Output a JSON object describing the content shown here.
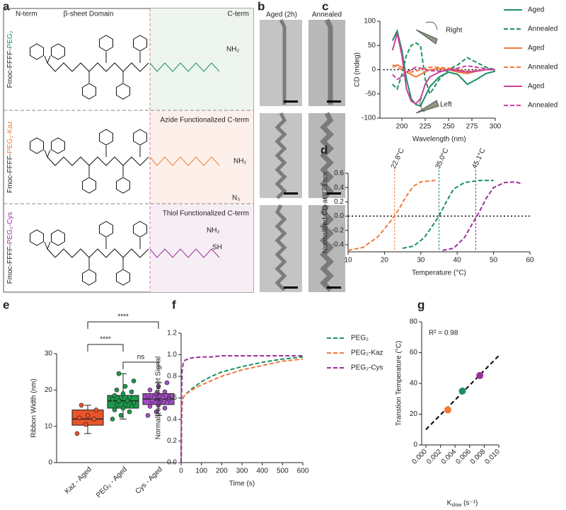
{
  "structures": {
    "panel": "a",
    "header": [
      "N-term",
      "β-sheet Domain",
      "C-term"
    ],
    "rows": [
      {
        "prefix": "Fmoc-FFFF-",
        "suffix": "PEG₂",
        "color": "#1a9060",
        "atoms": [
          "NH₂"
        ]
      },
      {
        "prefix": "Fmoc-FFFF-",
        "suffix": "PEG₂-Kaz",
        "color": "#f07a3a",
        "note": "Azide Functionalized C-term",
        "atoms": [
          "NH₂",
          "N₃"
        ]
      },
      {
        "prefix": "Fmoc-FFFF-",
        "suffix": "PEG₂-Cys",
        "color": "#9b2f9b",
        "note": "Thiol Functionalized C-term",
        "atoms": [
          "NH₂",
          "SH"
        ]
      }
    ]
  },
  "micrographs": {
    "panel": "b",
    "columns": [
      "Aged (2h)",
      "Annealed"
    ]
  },
  "chart_data": [
    {
      "panel": "c",
      "type": "line",
      "xlabel": "Wavelength (nm)",
      "ylabel": "CD (mdeg)",
      "x": [
        190,
        195,
        200,
        205,
        210,
        215,
        220,
        225,
        230,
        240,
        250,
        260,
        270,
        280,
        290,
        300
      ],
      "xlim": [
        180,
        300
      ],
      "xticks": [
        200,
        225,
        250,
        275,
        300
      ],
      "ylim": [
        -100,
        100
      ],
      "yticks": [
        -100,
        -50,
        0,
        50,
        100
      ],
      "zero_line": true,
      "annotations": [
        "Right",
        "Left"
      ],
      "legend": true,
      "series": [
        {
          "name": "Aged",
          "color": "#1a9060",
          "dash": false,
          "values": [
            60,
            80,
            40,
            -20,
            -60,
            -72,
            -75,
            -55,
            -35,
            -15,
            -5,
            -10,
            -30,
            -20,
            -8,
            -3
          ]
        },
        {
          "name": "Annealed",
          "color": "#1a9060",
          "dash": true,
          "values": [
            -30,
            -40,
            -10,
            30,
            50,
            55,
            50,
            -20,
            -50,
            -20,
            0,
            10,
            25,
            15,
            5,
            0
          ]
        },
        {
          "name": "Aged",
          "color": "#f07a3a",
          "dash": false,
          "values": [
            5,
            10,
            5,
            -5,
            -10,
            -15,
            -10,
            -5,
            0,
            2,
            0,
            -5,
            -8,
            -3,
            0,
            0
          ]
        },
        {
          "name": "Annealed",
          "color": "#f07a3a",
          "dash": true,
          "values": [
            10,
            5,
            0,
            -5,
            -5,
            -3,
            0,
            3,
            5,
            5,
            3,
            0,
            -3,
            -2,
            0,
            0
          ]
        },
        {
          "name": "Aged",
          "color": "#c8409a",
          "dash": false,
          "values": [
            40,
            75,
            30,
            -40,
            -65,
            -70,
            -60,
            -30,
            -15,
            -5,
            0,
            -2,
            -5,
            -3,
            0,
            0
          ]
        },
        {
          "name": "Annealed",
          "color": "#c8409a",
          "dash": true,
          "values": [
            -10,
            -20,
            -15,
            -5,
            0,
            5,
            3,
            0,
            -2,
            -3,
            0,
            3,
            8,
            5,
            2,
            0
          ]
        }
      ]
    },
    {
      "panel": "d",
      "type": "line",
      "xlabel": "Temperature (°C)",
      "ylabel": "Normalized CD at 273 nm",
      "xlim": [
        10,
        60
      ],
      "xticks": [
        10,
        20,
        30,
        40,
        50,
        60
      ],
      "ylim": [
        -0.5,
        0.6
      ],
      "yticks": [
        -0.4,
        -0.2,
        {
          "value": 0,
          "label": "0.0"
        },
        0.2,
        0.4,
        0.6
      ],
      "zero_line": true,
      "series": [
        {
          "color": "#f07a3a",
          "dash": true,
          "x": [
            10,
            14,
            18,
            20,
            22,
            24,
            26,
            28,
            30,
            34
          ],
          "values": [
            -0.48,
            -0.44,
            -0.3,
            -0.18,
            -0.05,
            0.1,
            0.28,
            0.42,
            0.48,
            0.5
          ],
          "transition": 22.8,
          "transition_label": "22.8°C"
        },
        {
          "color": "#1a9060",
          "dash": true,
          "x": [
            25,
            28,
            31,
            33,
            35,
            37,
            39,
            42,
            46,
            50
          ],
          "values": [
            -0.45,
            -0.42,
            -0.3,
            -0.15,
            0,
            0.2,
            0.38,
            0.47,
            0.5,
            0.5
          ],
          "transition": 35.0,
          "transition_label": "35.0°C"
        },
        {
          "color": "#9b2f9b",
          "dash": true,
          "x": [
            36,
            39,
            42,
            44,
            46,
            48,
            50,
            53,
            56,
            58
          ],
          "values": [
            -0.48,
            -0.45,
            -0.3,
            -0.12,
            0.05,
            0.25,
            0.4,
            0.47,
            0.48,
            0.45
          ],
          "transition": 45.1,
          "transition_label": "45.1°C"
        }
      ]
    },
    {
      "panel": "e",
      "type": "box",
      "ylabel": "Ribbon Width (nm)",
      "ylim": [
        0,
        30
      ],
      "yticks": [
        0,
        10,
        20,
        30
      ],
      "categories": [
        "Kaz - Aged",
        "PEG₂ - Aged",
        "Cys - Aged"
      ],
      "boxes": [
        {
          "color": "#e8542a",
          "min": 8,
          "q1": 10.3,
          "median": 12,
          "q3": 14.5,
          "max": 15.8,
          "points": [
            8,
            10.5,
            12,
            12.3,
            13,
            14.5,
            15.8
          ]
        },
        {
          "color": "#1a9a4a",
          "min": 12,
          "q1": 15,
          "median": 17,
          "q3": 18.5,
          "max": 24.5,
          "points": [
            12,
            13,
            14,
            14.5,
            15,
            15.5,
            16,
            16,
            16.5,
            17,
            17,
            17.5,
            18,
            18,
            18.5,
            19,
            19.5,
            20,
            21,
            22.5,
            24.5
          ]
        },
        {
          "color": "#a54bc4",
          "min": 13,
          "q1": 16,
          "median": 17.5,
          "q3": 19,
          "max": 22,
          "points": [
            13,
            14,
            15,
            15.5,
            16,
            16.5,
            17,
            17,
            17.5,
            18,
            18,
            18.5,
            19,
            19.5,
            20,
            21,
            22
          ]
        }
      ],
      "significance": [
        {
          "label": "****",
          "groups": [
            "Kaz - Aged",
            "Cys - Aged"
          ]
        },
        {
          "label": "****",
          "groups": [
            "Kaz - Aged",
            "PEG₂ - Aged"
          ]
        },
        {
          "label": "ns",
          "groups": [
            "PEG₂ - Aged",
            "Cys - Aged"
          ]
        }
      ]
    },
    {
      "panel": "f",
      "type": "line",
      "xlabel": "Time (s)",
      "ylabel": "Normalized β-sheet Signal",
      "x": [
        0,
        2,
        5,
        10,
        20,
        50,
        100,
        150,
        200,
        300,
        400,
        500,
        600
      ],
      "xlim": [
        0,
        600
      ],
      "xticks": [
        0,
        100,
        200,
        300,
        400,
        500,
        600
      ],
      "ylim": [
        0,
        1.2
      ],
      "yticks": [
        {
          "value": 0,
          "label": "0.0"
        },
        0.2,
        0.4,
        0.6,
        0.8,
        {
          "value": 1,
          "label": "1.0"
        },
        1.2
      ],
      "legend": true,
      "series": [
        {
          "name": "PEG₂",
          "color": "#1a9060",
          "dash": true,
          "values": [
            0,
            0.4,
            0.55,
            0.6,
            0.63,
            0.68,
            0.75,
            0.8,
            0.84,
            0.89,
            0.93,
            0.96,
            0.98
          ]
        },
        {
          "name": "PEG₂-Kaz",
          "color": "#f07a3a",
          "dash": true,
          "values": [
            0,
            0.4,
            0.55,
            0.6,
            0.63,
            0.67,
            0.72,
            0.76,
            0.8,
            0.86,
            0.9,
            0.94,
            0.96
          ]
        },
        {
          "name": "PEG₂-Cys",
          "color": "#9b2f9b",
          "dash": true,
          "values": [
            0,
            0.6,
            0.85,
            0.92,
            0.95,
            0.97,
            0.98,
            0.98,
            0.99,
            0.99,
            0.99,
            0.99,
            0.99
          ]
        }
      ]
    },
    {
      "panel": "g",
      "type": "scatter",
      "xlabel": {
        "main": "K",
        "sub": "slow",
        "unit": " (s⁻¹)"
      },
      "ylabel": "Transtion Temperature (°C)",
      "xlim": [
        0,
        0.01
      ],
      "xticks": [
        {
          "value": 0,
          "label": "0.000"
        },
        0.002,
        0.004,
        0.006,
        0.008,
        {
          "value": 0.01,
          "label": "0.010"
        }
      ],
      "ylim": [
        0,
        80
      ],
      "yticks": [
        0,
        20,
        40,
        60,
        80
      ],
      "x": [
        0.003,
        0.005,
        0.0074
      ],
      "values": [
        22.8,
        35,
        45.1
      ],
      "colors": [
        "#f07a3a",
        "#1a9060",
        "#9b2f9b"
      ],
      "fit": {
        "x": [
          0,
          0.01
        ],
        "values": [
          10,
          58
        ]
      },
      "annotation": "R² = 0.98"
    }
  ]
}
